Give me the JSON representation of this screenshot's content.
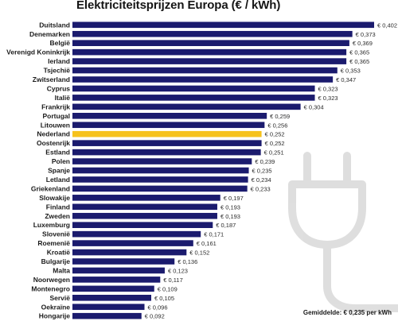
{
  "chart_data": {
    "type": "bar",
    "orientation": "horizontal",
    "title": "Elektriciteitsprijzen Europa (€ / kWh)",
    "categories": [
      "Duitsland",
      "Denemarken",
      "België",
      "Verenigd Koninkrijk",
      "Ierland",
      "Tsjechië",
      "Zwitserland",
      "Cyprus",
      "Italië",
      "Frankrijk",
      "Portugal",
      "Litouwen",
      "Nederland",
      "Oostenrijk",
      "Estland",
      "Polen",
      "Spanje",
      "Letland",
      "Griekenland",
      "Slowakije",
      "Finland",
      "Zweden",
      "Luxemburg",
      "Slovenië",
      "Roemenië",
      "Kroatië",
      "Bulgarije",
      "Malta",
      "Noorwegen",
      "Montenegro",
      "Servië",
      "Oekraïne",
      "Hongarije"
    ],
    "values": [
      0.402,
      0.373,
      0.369,
      0.365,
      0.365,
      0.353,
      0.347,
      0.323,
      0.323,
      0.304,
      0.259,
      0.256,
      0.252,
      0.252,
      0.251,
      0.239,
      0.235,
      0.234,
      0.233,
      0.197,
      0.193,
      0.193,
      0.187,
      0.171,
      0.161,
      0.152,
      0.136,
      0.123,
      0.117,
      0.109,
      0.105,
      0.096,
      0.092
    ],
    "value_labels": [
      "€ 0,402",
      "€ 0,373",
      "€ 0,369",
      "€ 0,365",
      "€ 0,365",
      "€ 0,353",
      "€ 0,347",
      "€ 0,323",
      "€ 0,323",
      "€ 0,304",
      "€ 0,259",
      "€ 0,256",
      "€ 0,252",
      "€ 0,252",
      "€ 0,251",
      "€ 0,239",
      "€ 0,235",
      "€ 0,234",
      "€ 0,233",
      "€ 0,197",
      "€ 0,193",
      "€ 0,193",
      "€ 0,187",
      "€ 0,171",
      "€ 0,161",
      "€ 0,152",
      "€ 0,136",
      "€ 0,123",
      "€ 0,117",
      "€ 0,109",
      "€ 0,105",
      "€ 0,096",
      "€ 0,092"
    ],
    "highlight": "Nederland",
    "colors": {
      "bar": "#1b1b6e",
      "highlight": "#f6c21c",
      "icon": "#d4d4d4"
    },
    "annotation": "Gemiddelde: € 0,235 per kWh",
    "xlim": [
      0,
      0.402
    ],
    "grid": false,
    "legend": "none",
    "background_icon": "power-plug-icon"
  }
}
